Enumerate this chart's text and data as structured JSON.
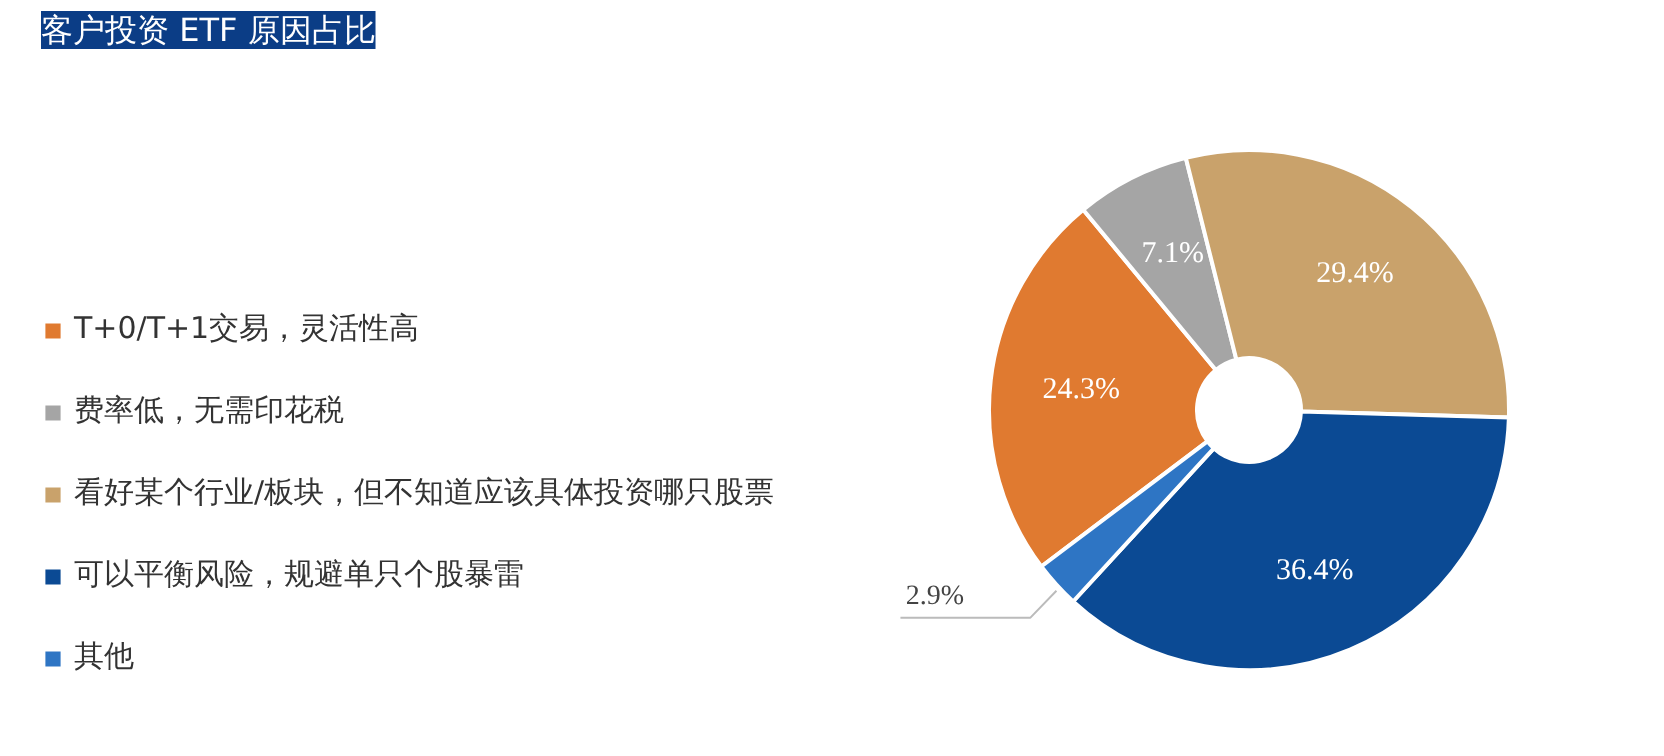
{
  "chart_data": {
    "type": "donut",
    "title": "客户投资 ETF 原因占比",
    "categories": [
      "T+0/T+1交易，灵活性高",
      "费率低，无需印花税",
      "看好某个行业/板块，但不知道应该具体投资哪只股票",
      "可以平衡风险，规避单只个股暴雷",
      "其他"
    ],
    "values": [
      24.3,
      7.1,
      29.4,
      36.4,
      2.9
    ],
    "value_labels": [
      "24.3%",
      "7.1%",
      "29.4%",
      "36.4%",
      "2.9%"
    ],
    "colors": [
      "#e07a30",
      "#a5a5a5",
      "#c9a26b",
      "#0b4a94",
      "#2e75c4"
    ],
    "legend": "left"
  }
}
